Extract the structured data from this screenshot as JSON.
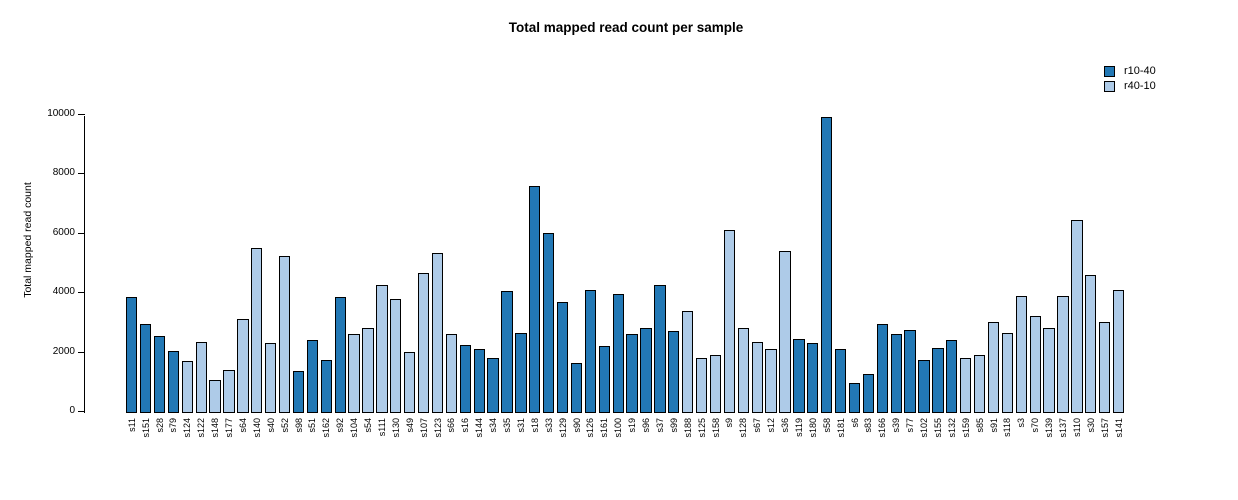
{
  "legend": [
    {
      "label": "r10-40",
      "color": "#2278b5"
    },
    {
      "label": "r40-10",
      "color": "#aecbe8"
    }
  ],
  "chart_data": {
    "type": "bar",
    "title": "Total mapped read count per sample",
    "xlabel": "",
    "ylabel": "Total mapped read count",
    "ylim": [
      0,
      10000
    ],
    "yticks": [
      0,
      2000,
      4000,
      6000,
      8000,
      10000
    ],
    "grid": false,
    "legend_position": "top-right",
    "series_colors": {
      "r10-40": "#2278b5",
      "r40-10": "#aecbe8"
    },
    "bar_border_color": "#000000",
    "samples": [
      {
        "id": "s11",
        "group": "r10-40",
        "value": 3900
      },
      {
        "id": "s151",
        "group": "r10-40",
        "value": 3000
      },
      {
        "id": "s28",
        "group": "r10-40",
        "value": 2600
      },
      {
        "id": "s79",
        "group": "r10-40",
        "value": 2100
      },
      {
        "id": "s124",
        "group": "r40-10",
        "value": 1750
      },
      {
        "id": "s122",
        "group": "r40-10",
        "value": 2400
      },
      {
        "id": "s148",
        "group": "r40-10",
        "value": 1100
      },
      {
        "id": "s177",
        "group": "r40-10",
        "value": 1450
      },
      {
        "id": "s64",
        "group": "r40-10",
        "value": 3150
      },
      {
        "id": "s140",
        "group": "r40-10",
        "value": 5550
      },
      {
        "id": "s40",
        "group": "r40-10",
        "value": 2350
      },
      {
        "id": "s52",
        "group": "r40-10",
        "value": 5300
      },
      {
        "id": "s98",
        "group": "r10-40",
        "value": 1400
      },
      {
        "id": "s51",
        "group": "r10-40",
        "value": 2450
      },
      {
        "id": "s162",
        "group": "r10-40",
        "value": 1800
      },
      {
        "id": "s92",
        "group": "r10-40",
        "value": 3900
      },
      {
        "id": "s104",
        "group": "r40-10",
        "value": 2650
      },
      {
        "id": "s54",
        "group": "r40-10",
        "value": 2850
      },
      {
        "id": "s111",
        "group": "r40-10",
        "value": 4300
      },
      {
        "id": "s130",
        "group": "r40-10",
        "value": 3850
      },
      {
        "id": "s49",
        "group": "r40-10",
        "value": 2050
      },
      {
        "id": "s107",
        "group": "r40-10",
        "value": 4700
      },
      {
        "id": "s123",
        "group": "r40-10",
        "value": 5400
      },
      {
        "id": "s66",
        "group": "r40-10",
        "value": 2650
      },
      {
        "id": "s16",
        "group": "r10-40",
        "value": 2300
      },
      {
        "id": "s144",
        "group": "r10-40",
        "value": 2150
      },
      {
        "id": "s34",
        "group": "r10-40",
        "value": 1850
      },
      {
        "id": "s35",
        "group": "r10-40",
        "value": 4100
      },
      {
        "id": "s31",
        "group": "r10-40",
        "value": 2700
      },
      {
        "id": "s18",
        "group": "r10-40",
        "value": 7650
      },
      {
        "id": "s33",
        "group": "r10-40",
        "value": 6050
      },
      {
        "id": "s129",
        "group": "r10-40",
        "value": 3750
      },
      {
        "id": "s90",
        "group": "r10-40",
        "value": 1700
      },
      {
        "id": "s126",
        "group": "r10-40",
        "value": 4150
      },
      {
        "id": "s161",
        "group": "r10-40",
        "value": 2250
      },
      {
        "id": "s100",
        "group": "r10-40",
        "value": 4000
      },
      {
        "id": "s19",
        "group": "r10-40",
        "value": 2650
      },
      {
        "id": "s96",
        "group": "r10-40",
        "value": 2850
      },
      {
        "id": "s37",
        "group": "r10-40",
        "value": 4300
      },
      {
        "id": "s99",
        "group": "r10-40",
        "value": 2750
      },
      {
        "id": "s188",
        "group": "r40-10",
        "value": 3450
      },
      {
        "id": "s125",
        "group": "r40-10",
        "value": 1850
      },
      {
        "id": "s158",
        "group": "r40-10",
        "value": 1950
      },
      {
        "id": "s9",
        "group": "r40-10",
        "value": 6150
      },
      {
        "id": "s128",
        "group": "r40-10",
        "value": 2850
      },
      {
        "id": "s67",
        "group": "r40-10",
        "value": 2400
      },
      {
        "id": "s12",
        "group": "r40-10",
        "value": 2150
      },
      {
        "id": "s36",
        "group": "r40-10",
        "value": 5450
      },
      {
        "id": "s119",
        "group": "r10-40",
        "value": 2500
      },
      {
        "id": "s180",
        "group": "r10-40",
        "value": 2350
      },
      {
        "id": "s58",
        "group": "r10-40",
        "value": 9950
      },
      {
        "id": "s181",
        "group": "r10-40",
        "value": 2150
      },
      {
        "id": "s6",
        "group": "r10-40",
        "value": 1000
      },
      {
        "id": "s83",
        "group": "r10-40",
        "value": 1300
      },
      {
        "id": "s166",
        "group": "r10-40",
        "value": 3000
      },
      {
        "id": "s39",
        "group": "r10-40",
        "value": 2650
      },
      {
        "id": "s77",
        "group": "r10-40",
        "value": 2800
      },
      {
        "id": "s102",
        "group": "r10-40",
        "value": 1800
      },
      {
        "id": "s155",
        "group": "r10-40",
        "value": 2200
      },
      {
        "id": "s132",
        "group": "r10-40",
        "value": 2450
      },
      {
        "id": "s159",
        "group": "r40-10",
        "value": 1850
      },
      {
        "id": "s85",
        "group": "r40-10",
        "value": 1950
      },
      {
        "id": "s91",
        "group": "r40-10",
        "value": 3050
      },
      {
        "id": "s118",
        "group": "r40-10",
        "value": 2700
      },
      {
        "id": "s3",
        "group": "r40-10",
        "value": 3950
      },
      {
        "id": "s70",
        "group": "r40-10",
        "value": 3250
      },
      {
        "id": "s139",
        "group": "r40-10",
        "value": 2850
      },
      {
        "id": "s137",
        "group": "r40-10",
        "value": 3950
      },
      {
        "id": "s110",
        "group": "r40-10",
        "value": 6500
      },
      {
        "id": "s30",
        "group": "r40-10",
        "value": 4650
      },
      {
        "id": "s157",
        "group": "r40-10",
        "value": 3050
      },
      {
        "id": "s141",
        "group": "r40-10",
        "value": 4150
      }
    ]
  }
}
